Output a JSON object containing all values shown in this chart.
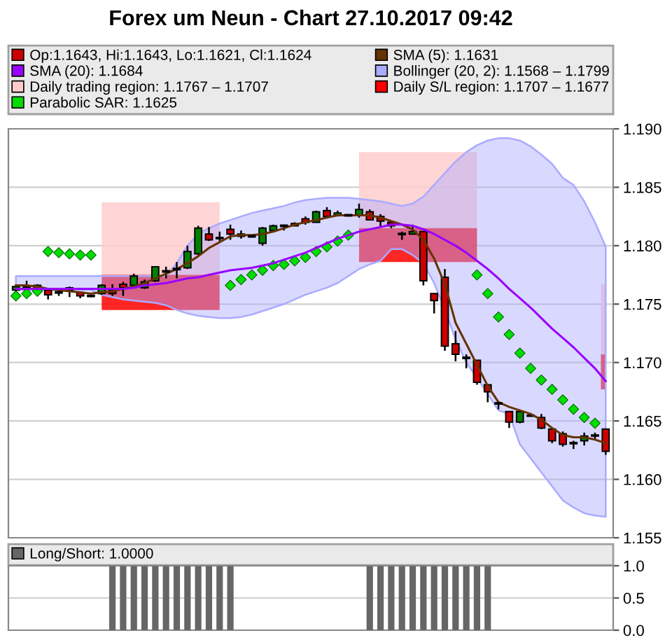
{
  "chart_data": [
    {
      "type": "candlestick",
      "title": "Forex um Neun - Chart 27.10.2017 09:42",
      "categories": [
        null,
        null,
        null,
        null,
        null,
        null,
        null,
        null,
        null,
        null,
        null,
        null,
        null,
        null,
        null,
        null,
        null,
        null,
        null,
        null,
        null,
        null,
        null,
        null,
        null,
        null,
        null,
        null,
        null,
        null,
        null,
        null,
        null,
        null,
        null,
        null,
        null,
        null,
        null,
        null,
        null,
        null,
        null,
        null,
        null,
        null,
        null,
        null,
        null,
        null,
        null,
        null,
        null,
        null,
        null,
        null
      ],
      "ylim": [
        1.155,
        1.19
      ],
      "yticks": [
        1.155,
        {
          "value": 1.16,
          "label": "1.160"
        },
        1.165,
        {
          "value": 1.17,
          "label": "1.170"
        },
        1.175,
        {
          "value": 1.18,
          "label": "1.180"
        },
        1.185,
        {
          "value": 1.19,
          "label": "1.190"
        }
      ],
      "grid": "y",
      "legend": "top",
      "tick_labels": "y",
      "series": [
        {
          "name": "Op:1.1643, Hi:1.1643, Lo:1.1621, Cl:1.1624",
          "type": "candlestick",
          "color": "#cc0000",
          "ohlc": [
            [
              1.1762,
              1.1766,
              1.1761,
              1.1765
            ],
            [
              1.1764,
              1.177,
              1.1763,
              1.1765
            ],
            [
              1.1766,
              1.1767,
              1.1762,
              1.1763
            ],
            [
              1.1762,
              1.1762,
              1.1754,
              1.1758
            ],
            [
              1.176,
              1.1764,
              1.1757,
              1.176
            ],
            [
              1.1764,
              1.1765,
              1.1756,
              1.1762
            ],
            [
              1.176,
              1.176,
              1.1755,
              1.1757
            ],
            [
              1.1757,
              1.1758,
              1.1756,
              1.1757
            ],
            [
              1.1759,
              1.1767,
              1.1758,
              1.1766
            ],
            [
              1.1762,
              1.1767,
              1.1757,
              1.1759
            ],
            [
              1.1767,
              1.1769,
              1.1757,
              1.1764
            ],
            [
              1.1766,
              1.1776,
              1.1766,
              1.1774
            ],
            [
              1.1764,
              1.1771,
              1.1763,
              1.1769
            ],
            [
              1.177,
              1.1782,
              1.1769,
              1.1782
            ],
            [
              1.1778,
              1.1782,
              1.1772,
              1.1778
            ],
            [
              1.178,
              1.1786,
              1.1772,
              1.178
            ],
            [
              1.1781,
              1.18,
              1.178,
              1.1795
            ],
            [
              1.1793,
              1.1817,
              1.1792,
              1.1815
            ],
            [
              1.181,
              1.1816,
              1.1804,
              1.1805
            ],
            [
              1.1807,
              1.1812,
              1.1804,
              1.1806
            ],
            [
              1.1814,
              1.1818,
              1.1805,
              1.181
            ],
            [
              1.181,
              1.1813,
              1.1806,
              1.1808
            ],
            [
              1.1808,
              1.1809,
              1.1807,
              1.1808
            ],
            [
              1.1802,
              1.1816,
              1.18,
              1.1815
            ],
            [
              1.1813,
              1.1818,
              1.1812,
              1.1817
            ],
            [
              1.1817,
              1.1818,
              1.1813,
              1.1817
            ],
            [
              1.1817,
              1.182,
              1.1817,
              1.1819
            ],
            [
              1.1823,
              1.1825,
              1.1818,
              1.182
            ],
            [
              1.182,
              1.183,
              1.182,
              1.1829
            ],
            [
              1.183,
              1.1833,
              1.1824,
              1.1825
            ],
            [
              1.1826,
              1.183,
              1.1825,
              1.1828
            ],
            [
              1.1826,
              1.1827,
              1.1825,
              1.1826
            ],
            [
              1.1826,
              1.1836,
              1.1824,
              1.1831
            ],
            [
              1.1829,
              1.1831,
              1.1822,
              1.1822
            ],
            [
              1.1825,
              1.1827,
              1.1816,
              1.1821
            ],
            [
              1.182,
              1.1821,
              1.1815,
              1.1817
            ],
            [
              1.181,
              1.1812,
              1.1805,
              1.181
            ],
            [
              1.181,
              1.1818,
              1.181,
              1.1812
            ],
            [
              1.1812,
              1.1812,
              1.1766,
              1.177
            ],
            [
              1.1759,
              1.1759,
              1.1742,
              1.1753
            ],
            [
              1.1773,
              1.178,
              1.171,
              1.1714
            ],
            [
              1.1716,
              1.1727,
              1.1701,
              1.1707
            ],
            [
              1.1704,
              1.1707,
              1.1695,
              1.1704
            ],
            [
              1.1702,
              1.1702,
              1.1681,
              1.1683
            ],
            [
              1.1681,
              1.1681,
              1.1666,
              1.1675
            ],
            [
              1.1665,
              1.1667,
              1.166,
              1.1665
            ],
            [
              1.1658,
              1.1658,
              1.1644,
              1.1649
            ],
            [
              1.1649,
              1.1659,
              1.1648,
              1.1658
            ],
            [
              1.1654,
              1.1656,
              1.1654,
              1.1655
            ],
            [
              1.1653,
              1.1656,
              1.1643,
              1.1644
            ],
            [
              1.1643,
              1.1643,
              1.1631,
              1.1633
            ],
            [
              1.1639,
              1.1641,
              1.1628,
              1.163
            ],
            [
              1.1631,
              1.1633,
              1.1626,
              1.1631
            ],
            [
              1.1633,
              1.164,
              1.1629,
              1.1637
            ],
            [
              1.1637,
              1.164,
              1.1634,
              1.1638
            ],
            [
              1.1643,
              1.1643,
              1.1621,
              1.1624
            ]
          ],
          "colors": [
            "#008000",
            "#008000",
            "#cc0000",
            "#cc0000",
            "#000000",
            "#cc0000",
            "#cc0000",
            "#000000",
            "#008000",
            "#cc0000",
            "#cc0000",
            "#008000",
            "#008000",
            "#008000",
            "#000000",
            "#000000",
            "#008000",
            "#008000",
            "#cc0000",
            "#cc0000",
            "#cc0000",
            "#cc0000",
            "#000000",
            "#008000",
            "#008000",
            "#000000",
            "#008000",
            "#cc0000",
            "#008000",
            "#cc0000",
            "#008000",
            "#000000",
            "#008000",
            "#cc0000",
            "#cc0000",
            "#cc0000",
            "#000000",
            "#008000",
            "#cc0000",
            "#cc0000",
            "#cc0000",
            "#cc0000",
            "#000000",
            "#cc0000",
            "#cc0000",
            "#000000",
            "#cc0000",
            "#008000",
            "#008000",
            "#cc0000",
            "#cc0000",
            "#cc0000",
            "#000000",
            "#008000",
            "#008000",
            "#cc0000"
          ]
        },
        {
          "name": "SMA (5): 1.1631",
          "type": "line",
          "color": "#663300",
          "line_style": "solid",
          "values": [
            1.1766,
            1.1766,
            1.1765,
            1.1763,
            1.1762,
            1.1761,
            1.176,
            1.1759,
            1.176,
            1.1761,
            1.1763,
            1.1765,
            1.1768,
            1.1772,
            1.1776,
            1.178,
            1.1785,
            1.1791,
            1.1798,
            1.1803,
            1.1808,
            1.1809,
            1.1809,
            1.181,
            1.1812,
            1.1815,
            1.1818,
            1.182,
            1.1822,
            1.1824,
            1.1826,
            1.1826,
            1.1826,
            1.1826,
            1.1824,
            1.1821,
            1.1818,
            1.1814,
            1.1805,
            1.1789,
            1.1767,
            1.1734,
            1.1716,
            1.1698,
            1.168,
            1.1666,
            1.1662,
            1.1659,
            1.1656,
            1.1651,
            1.1644,
            1.1638,
            1.1636,
            1.1636,
            1.1634,
            1.1631
          ]
        },
        {
          "name": "SMA (20): 1.1684",
          "type": "line",
          "color": "#9900ff",
          "line_style": "solid",
          "values": [
            1.1763,
            1.1763,
            1.1763,
            1.1763,
            1.1763,
            1.1763,
            1.1763,
            1.1763,
            1.1763,
            1.1763,
            1.1763,
            1.1764,
            1.1766,
            1.1767,
            1.1768,
            1.177,
            1.1772,
            1.1773,
            1.1775,
            1.1777,
            1.1779,
            1.178,
            1.1781,
            1.1783,
            1.1785,
            1.1788,
            1.1791,
            1.1794,
            1.1798,
            1.1802,
            1.1806,
            1.1809,
            1.1812,
            1.1814,
            1.1816,
            1.1818,
            1.1818,
            1.1817,
            1.1814,
            1.181,
            1.1805,
            1.18,
            1.1794,
            1.1787,
            1.178,
            1.1772,
            1.1763,
            1.1755,
            1.1747,
            1.1738,
            1.1729,
            1.1721,
            1.1713,
            1.1704,
            1.1695,
            1.1684
          ]
        },
        {
          "name": "Bollinger (20, 2): 1.1568 – 1.1799",
          "type": "area",
          "color": "#aaaaff",
          "line_style": "solid",
          "values": [
            null,
            null,
            null,
            null,
            null,
            null,
            null,
            null,
            null,
            null,
            null,
            null,
            null,
            null,
            null,
            null,
            null,
            null,
            null,
            null,
            null,
            null,
            null,
            null,
            null,
            null,
            null,
            null,
            null,
            null,
            null,
            null,
            null,
            null,
            null,
            null,
            null,
            null,
            null,
            null,
            null,
            null,
            null,
            null,
            null,
            null,
            null,
            null,
            null,
            null,
            null,
            null,
            null,
            null,
            null,
            null
          ],
          "upper": [
            1.1774,
            1.1774,
            1.1774,
            1.1774,
            1.1774,
            1.1774,
            1.1774,
            1.1774,
            1.1774,
            1.1774,
            1.1774,
            1.1774,
            1.1774,
            1.1774,
            1.1774,
            1.1785,
            1.18,
            1.181,
            1.1815,
            1.1819,
            1.1822,
            1.1825,
            1.1828,
            1.183,
            1.1832,
            1.1834,
            1.1837,
            1.1839,
            1.184,
            1.1841,
            1.1841,
            1.1841,
            1.184,
            1.1839,
            1.1838,
            1.1836,
            1.1834,
            1.1836,
            1.1842,
            1.1852,
            1.1862,
            1.1872,
            1.188,
            1.1886,
            1.189,
            1.1892,
            1.1892,
            1.189,
            1.1885,
            1.1878,
            1.187,
            1.1858,
            1.1852,
            1.1838,
            1.182,
            1.1799
          ],
          "lower": [
            1.1762,
            1.1762,
            1.1762,
            1.1762,
            1.1762,
            1.1762,
            1.1762,
            1.1762,
            1.1758,
            1.1756,
            1.1754,
            1.1753,
            1.1752,
            1.1751,
            1.1749,
            1.1745,
            1.1742,
            1.174,
            1.1739,
            1.1738,
            1.1738,
            1.1739,
            1.1741,
            1.1744,
            1.1747,
            1.175,
            1.1754,
            1.1758,
            1.1761,
            1.1764,
            1.1768,
            1.1774,
            1.178,
            1.1784,
            1.1787,
            1.1797,
            1.1797,
            1.1792,
            1.1785,
            1.1768,
            1.1745,
            1.172,
            1.17,
            1.1687,
            1.1673,
            1.1659,
            1.1656,
            1.163,
            1.1618,
            1.1606,
            1.1594,
            1.1582,
            1.1576,
            1.1571,
            1.1569,
            1.1568
          ]
        },
        {
          "name": "Daily trading region: 1.1767 – 1.1707",
          "type": "area",
          "color": "#ffcccc",
          "values": [
            null,
            null,
            null,
            null,
            null,
            null,
            null,
            null,
            null,
            null,
            null,
            null,
            null,
            null,
            null,
            null,
            null,
            null,
            null,
            null,
            null,
            null,
            null,
            null,
            null,
            null,
            null,
            null,
            null,
            null,
            null,
            null,
            null,
            null,
            null,
            null,
            null,
            null,
            null,
            null,
            null,
            null,
            null,
            null,
            null,
            null,
            null,
            null,
            null,
            null,
            null,
            null,
            null,
            null,
            null,
            null
          ],
          "upper": [
            null,
            null,
            null,
            null,
            null,
            null,
            null,
            null,
            1.1837,
            1.1837,
            1.1837,
            1.1837,
            1.1837,
            1.1837,
            1.1837,
            1.1837,
            1.1837,
            1.1837,
            1.1837,
            1.1837,
            null,
            null,
            null,
            null,
            null,
            null,
            null,
            null,
            null,
            null,
            null,
            null,
            1.188,
            1.188,
            1.188,
            1.188,
            1.188,
            1.188,
            1.188,
            1.188,
            1.188,
            1.188,
            1.188,
            1.188,
            null,
            null,
            null,
            null,
            null,
            null,
            null,
            null,
            null,
            null,
            null,
            1.1767
          ],
          "lower": [
            null,
            null,
            null,
            null,
            null,
            null,
            null,
            null,
            1.1775,
            1.1775,
            1.1775,
            1.1775,
            1.1775,
            1.1775,
            1.1775,
            1.1775,
            1.1775,
            1.1775,
            1.1775,
            1.1775,
            null,
            null,
            null,
            null,
            null,
            null,
            null,
            null,
            null,
            null,
            null,
            null,
            1.1815,
            1.1815,
            1.1815,
            1.1815,
            1.1815,
            1.1815,
            1.1815,
            1.1815,
            1.1815,
            1.1815,
            1.1815,
            1.1815,
            null,
            null,
            null,
            null,
            null,
            null,
            null,
            null,
            null,
            null,
            null,
            1.1707
          ]
        },
        {
          "name": "Daily S/L region: 1.1707 – 1.1677",
          "type": "area",
          "color": "#ff0000",
          "values": [
            null,
            null,
            null,
            null,
            null,
            null,
            null,
            null,
            null,
            null,
            null,
            null,
            null,
            null,
            null,
            null,
            null,
            null,
            null,
            null,
            null,
            null,
            null,
            null,
            null,
            null,
            null,
            null,
            null,
            null,
            null,
            null,
            null,
            null,
            null,
            null,
            null,
            null,
            null,
            null,
            null,
            null,
            null,
            null,
            null,
            null,
            null,
            null,
            null,
            null,
            null,
            null,
            null,
            null,
            null,
            null
          ],
          "upper": [
            null,
            null,
            null,
            null,
            null,
            null,
            null,
            null,
            1.1775,
            1.1775,
            1.1775,
            1.1775,
            1.1775,
            1.1775,
            1.1775,
            1.1775,
            1.1775,
            1.1775,
            1.1775,
            1.1775,
            null,
            null,
            null,
            null,
            null,
            null,
            null,
            null,
            null,
            null,
            null,
            null,
            1.1815,
            1.1815,
            1.1815,
            1.1815,
            1.1815,
            1.1815,
            1.1815,
            1.1815,
            1.1815,
            1.1815,
            1.1815,
            1.1815,
            null,
            null,
            null,
            null,
            null,
            null,
            null,
            null,
            null,
            null,
            null,
            1.1707
          ],
          "lower": [
            null,
            null,
            null,
            null,
            null,
            null,
            null,
            null,
            1.1745,
            1.1745,
            1.1745,
            1.1745,
            1.1745,
            1.1745,
            1.1745,
            1.1745,
            1.1745,
            1.1745,
            1.1745,
            1.1745,
            null,
            null,
            null,
            null,
            null,
            null,
            null,
            null,
            null,
            null,
            null,
            null,
            1.1786,
            1.1786,
            1.1786,
            1.1786,
            1.1786,
            1.1786,
            1.1786,
            1.1786,
            1.1786,
            1.1786,
            1.1786,
            1.1786,
            null,
            null,
            null,
            null,
            null,
            null,
            null,
            null,
            null,
            null,
            null,
            1.1677
          ]
        },
        {
          "name": "Parabolic SAR: 1.1625",
          "type": "scatter",
          "color": "#00dd00",
          "marker": "diamond",
          "values": [
            1.1757,
            1.1759,
            1.1761,
            1.1795,
            1.1794,
            1.1793,
            1.1792,
            1.1792,
            null,
            null,
            null,
            null,
            null,
            null,
            null,
            null,
            null,
            null,
            null,
            null,
            1.1766,
            1.1771,
            1.1775,
            1.1779,
            1.1783,
            1.1784,
            1.1787,
            1.179,
            1.1795,
            1.1799,
            1.1804,
            1.1809,
            null,
            null,
            null,
            null,
            null,
            null,
            null,
            null,
            null,
            null,
            null,
            1.1775,
            1.1759,
            1.1739,
            1.1724,
            1.1708,
            1.1695,
            1.1685,
            1.1677,
            1.1668,
            1.166,
            1.1653,
            1.1648,
            null
          ]
        }
      ]
    },
    {
      "type": "bar",
      "categories": [
        null,
        null,
        null,
        null,
        null,
        null,
        null,
        null,
        null,
        null,
        null,
        null,
        null,
        null,
        null,
        null,
        null,
        null,
        null,
        null,
        null,
        null,
        null,
        null,
        null,
        null,
        null,
        null,
        null,
        null,
        null,
        null,
        null,
        null,
        null,
        null,
        null,
        null,
        null,
        null,
        null,
        null,
        null,
        null,
        null,
        null,
        null,
        null,
        null,
        null,
        null,
        null,
        null,
        null,
        null,
        null
      ],
      "ylim": [
        0,
        1
      ],
      "yticks": [
        {
          "value": 0,
          "label": "0.0"
        },
        0.5,
        {
          "value": 1,
          "label": "1.0"
        }
      ],
      "grid": "y",
      "legend": "top",
      "tick_labels": "y",
      "series": [
        {
          "name": "Long/Short: 1.0000",
          "color": "#666666",
          "values": [
            0,
            0,
            0,
            0,
            0,
            0,
            0,
            0,
            0,
            1,
            1,
            1,
            1,
            1,
            1,
            1,
            1,
            1,
            1,
            1,
            1,
            0,
            0,
            0,
            0,
            0,
            0,
            0,
            0,
            0,
            0,
            0,
            0,
            1,
            1,
            1,
            1,
            1,
            1,
            1,
            1,
            1,
            1,
            1,
            1,
            0,
            0,
            0,
            0,
            0,
            0,
            0,
            0,
            0,
            0,
            0
          ]
        }
      ]
    }
  ]
}
